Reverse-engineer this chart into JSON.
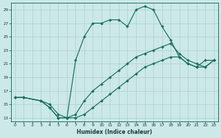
{
  "xlabel": "Humidex (Indice chaleur)",
  "bg_color": "#cce8e8",
  "grid_color": "#aacfcf",
  "line_color": "#1a7060",
  "xlim": [
    -0.5,
    23.5
  ],
  "ylim": [
    12.5,
    30
  ],
  "xticks": [
    0,
    1,
    2,
    3,
    4,
    5,
    6,
    7,
    8,
    9,
    10,
    11,
    12,
    13,
    14,
    15,
    16,
    17,
    18,
    19,
    20,
    21,
    22,
    23
  ],
  "yticks": [
    13,
    15,
    17,
    19,
    21,
    23,
    25,
    27,
    29
  ],
  "line1_x": [
    0,
    1,
    3,
    4,
    5,
    6,
    7,
    8,
    9,
    10,
    11,
    12,
    13,
    14,
    15,
    16,
    17,
    18,
    19,
    20,
    21,
    22,
    23
  ],
  "line1_y": [
    16.0,
    16.0,
    15.5,
    14.5,
    13.0,
    13.0,
    21.5,
    25.0,
    27.0,
    27.0,
    27.5,
    27.5,
    26.5,
    29.0,
    29.5,
    29.0,
    26.5,
    24.5,
    22.0,
    21.0,
    20.5,
    21.5,
    21.5
  ],
  "line2_x": [
    0,
    1,
    3,
    4,
    5,
    6,
    7,
    8,
    9,
    10,
    11,
    12,
    13,
    14,
    15,
    16,
    17,
    18,
    19,
    20,
    21,
    22,
    23
  ],
  "line2_y": [
    16.0,
    16.0,
    15.5,
    14.5,
    13.0,
    13.0,
    13.0,
    13.5,
    14.5,
    15.5,
    16.5,
    17.5,
    18.5,
    19.5,
    20.5,
    21.0,
    21.5,
    22.0,
    22.0,
    21.0,
    20.5,
    20.5,
    21.5
  ],
  "line3_x": [
    0,
    1,
    3,
    4,
    5,
    6,
    7,
    8,
    9,
    10,
    11,
    12,
    13,
    14,
    15,
    16,
    17,
    18,
    19,
    20,
    21,
    22,
    23
  ],
  "line3_y": [
    16.0,
    16.0,
    15.5,
    15.0,
    13.5,
    13.0,
    13.5,
    15.5,
    17.0,
    18.0,
    19.0,
    20.0,
    21.0,
    22.0,
    22.5,
    23.0,
    23.5,
    24.0,
    22.5,
    21.5,
    21.0,
    20.5,
    21.5
  ]
}
